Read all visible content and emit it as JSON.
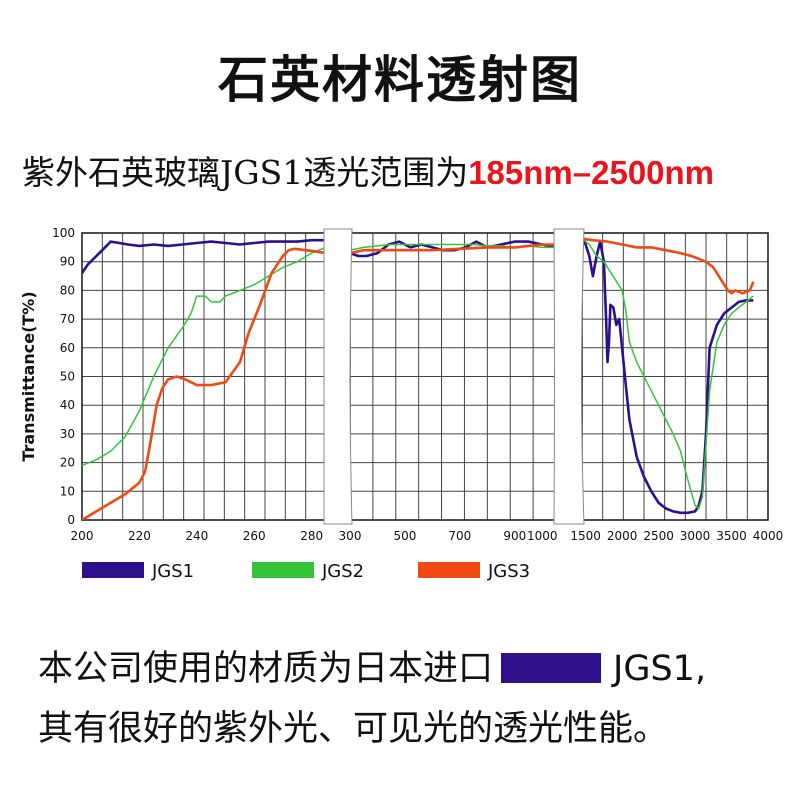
{
  "title": "石英材料透射图",
  "subtitle": {
    "text": "紫外石英玻璃JGS1透光范围为",
    "highlight": "185nm–2500nm"
  },
  "colors": {
    "JGS1": "#2d0f8c",
    "JGS2": "#33c43a",
    "JGS3": "#f04a12",
    "highlight": "#e8141e"
  },
  "footer": {
    "line1_prefix": "本公司使用的材质为日本进口",
    "line1_suffix": "JGS1,",
    "line2": "其有很好的紫外光、可见光的透光性能。"
  },
  "chart_data": {
    "type": "line",
    "ylabel": "Transmittance(T%)",
    "ylim": [
      0,
      100
    ],
    "yticks": [
      "0",
      "10",
      "20",
      "30",
      "40",
      "50",
      "60",
      "70",
      "80",
      "90",
      "100"
    ],
    "grid": true,
    "legend": [
      "JGS1",
      "JGS2",
      "JGS3"
    ],
    "legend_position": "bottom",
    "panels": [
      {
        "xlim": [
          200,
          285
        ],
        "xticks": [
          200,
          220,
          240,
          260,
          280
        ],
        "series": [
          {
            "name": "JGS1",
            "x": [
              200,
              202,
              205,
              208,
              210,
              213,
              216,
              220,
              225,
              230,
              235,
              240,
              245,
              250,
              255,
              260,
              265,
              270,
              275,
              280,
              285
            ],
            "y": [
              86,
              89,
              92,
              95,
              97,
              96.5,
              96,
              95.5,
              96,
              95.5,
              96,
              96.5,
              97,
              96.5,
              96,
              96.5,
              97,
              97,
              97,
              97.5,
              97.5
            ]
          },
          {
            "name": "JGS2",
            "x": [
              200,
              205,
              210,
              215,
              220,
              225,
              230,
              235,
              238,
              240,
              243,
              245,
              248,
              250,
              255,
              260,
              265,
              270,
              275,
              280,
              285
            ],
            "y": [
              19,
              21,
              24,
              29,
              38,
              50,
              60,
              67,
              72,
              78,
              78,
              76,
              76,
              78,
              80,
              82,
              85,
              88,
              90,
              93,
              95
            ]
          },
          {
            "name": "JGS3",
            "x": [
              200,
              205,
              210,
              215,
              220,
              222,
              224,
              226,
              228,
              230,
              233,
              236,
              240,
              245,
              250,
              255,
              258,
              262,
              266,
              270,
              272,
              274,
              278,
              282,
              285
            ],
            "y": [
              0,
              3,
              6,
              9,
              13,
              17,
              28,
              40,
              46,
              49,
              50,
              49,
              47,
              47,
              48,
              55,
              65,
              75,
              86,
              92,
              94,
              94.5,
              94,
              93.5,
              93
            ]
          }
        ]
      },
      {
        "xlim": [
          300,
          1050
        ],
        "xticks": [
          300,
          500,
          700,
          900,
          1000
        ],
        "series": [
          {
            "name": "JGS1",
            "x": [
              300,
              330,
              360,
              400,
              440,
              480,
              520,
              560,
              600,
              640,
              680,
              720,
              760,
              800,
              850,
              900,
              950,
              1000,
              1050
            ],
            "y": [
              93,
              92,
              92,
              93,
              96,
              97,
              95,
              96,
              95,
              94,
              94,
              95,
              97,
              95,
              96,
              97,
              97,
              96,
              95
            ]
          },
          {
            "name": "JGS2",
            "x": [
              300,
              350,
              400,
              450,
              500,
              550,
              600,
              650,
              700,
              750,
              800,
              850,
              900,
              950,
              1000,
              1050
            ],
            "y": [
              94,
              95,
              95.5,
              96,
              96,
              96,
              96,
              96,
              96,
              96,
              95.5,
              95.5,
              95,
              95.5,
              95,
              95
            ]
          },
          {
            "name": "JGS3",
            "x": [
              300,
              350,
              400,
              450,
              500,
              600,
              700,
              800,
              900,
              950,
              1000,
              1050
            ],
            "y": [
              93,
              94,
              94,
              94,
              94,
              94,
              94.5,
              95,
              95,
              95.5,
              96,
              96
            ]
          }
        ]
      },
      {
        "xlim": [
          1450,
          4000
        ],
        "xticks": [
          1500,
          2000,
          2500,
          3000,
          3500,
          4000
        ],
        "series": [
          {
            "name": "JGS1",
            "x": [
              1450,
              1500,
              1550,
              1600,
              1650,
              1700,
              1750,
              1780,
              1800,
              1820,
              1840,
              1880,
              1920,
              1960,
              2000,
              2050,
              2100,
              2200,
              2300,
              2400,
              2500,
              2600,
              2700,
              2800,
              2900,
              3000,
              3050,
              3100,
              3150,
              3200,
              3300,
              3400,
              3500,
              3600,
              3700,
              3800
            ],
            "y": [
              99,
              96,
              92,
              85,
              92,
              97,
              90,
              70,
              55,
              62,
              75,
              74,
              68,
              70,
              60,
              47,
              35,
              22,
              15,
              10,
              6,
              4,
              3,
              2.5,
              2.5,
              3,
              5,
              10,
              30,
              60,
              68,
              72,
              74,
              76,
              76.5,
              76.5
            ]
          },
          {
            "name": "JGS2",
            "x": [
              1450,
              1550,
              1650,
              1750,
              1800,
              1850,
              1900,
              1950,
              2000,
              2050,
              2100,
              2200,
              2300,
              2400,
              2500,
              2600,
              2700,
              2800,
              2900,
              3000,
              3050,
              3100,
              3200,
              3300,
              3400,
              3500,
              3600,
              3700,
              3800
            ],
            "y": [
              98,
              96,
              92,
              90,
              88,
              86,
              84,
              82,
              80,
              73,
              62,
              55,
              50,
              45,
              40,
              35,
              30,
              24,
              14,
              5,
              4,
              8,
              45,
              62,
              68,
              72,
              74,
              76,
              78
            ]
          },
          {
            "name": "JGS3",
            "x": [
              1450,
              1600,
              1800,
              2000,
              2200,
              2400,
              2600,
              2800,
              2950,
              3050,
              3150,
              3250,
              3350,
              3450,
              3500,
              3550,
              3650,
              3750,
              3800
            ],
            "y": [
              98,
              97.5,
              97,
              96,
              95,
              95,
              94,
              93,
              92,
              91,
              90,
              88,
              84,
              80,
              79,
              80,
              79,
              80,
              83
            ]
          }
        ]
      }
    ]
  }
}
